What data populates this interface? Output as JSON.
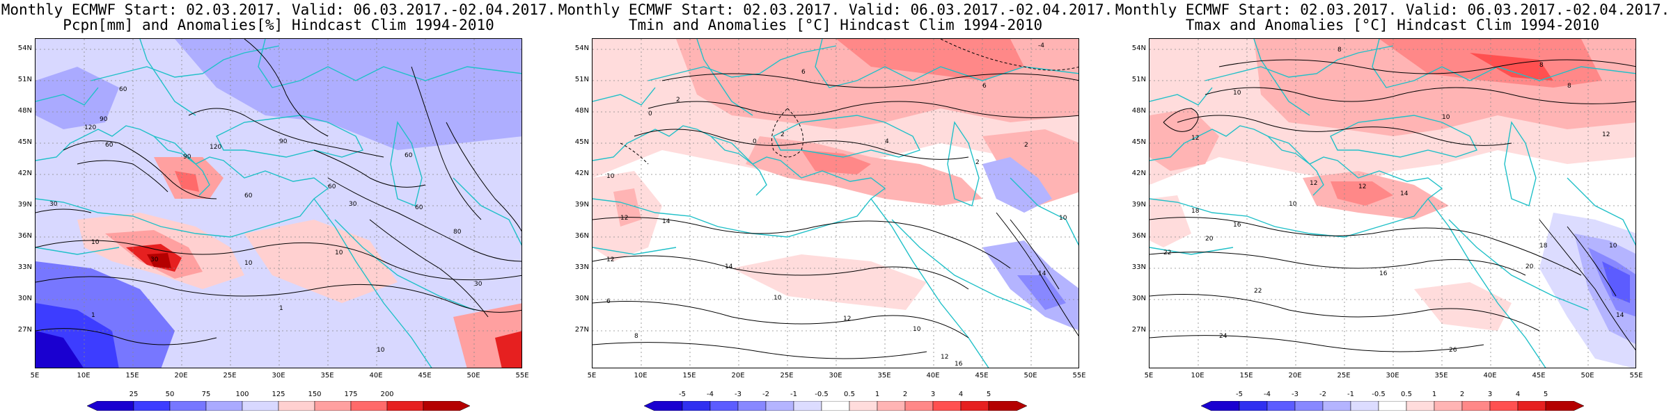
{
  "panels": [
    {
      "title_line1": "Monthly ECMWF Start: 02.03.2017. Valid: 06.03.2017.-02.04.2017.",
      "title_line2": "Pcpn[mm] and Anomalies[%] Hindcast Clim 1994-2010",
      "colorbar_ticks": [
        "25",
        "50",
        "75",
        "100",
        "125",
        "150",
        "175",
        "200"
      ],
      "colorbar_colors": [
        "#1a00d0",
        "#3d3dff",
        "#7777ff",
        "#aaaaff",
        "#d8d8ff",
        "#ffd0d0",
        "#ffa0a0",
        "#ff6a6a",
        "#e62020",
        "#b40000"
      ],
      "contour_labels": [
        "60",
        "90",
        "120",
        "60",
        "90",
        "60",
        "60",
        "90",
        "120",
        "60",
        "30",
        "30",
        "10",
        "30",
        "10",
        "10",
        "1",
        "1",
        "10",
        "60",
        "30",
        "80"
      ]
    },
    {
      "title_line1": "Monthly ECMWF Start: 02.03.2017. Valid: 06.03.2017.-02.04.2017.",
      "title_line2": "Tmin and Anomalies [°C] Hindcast Clim 1994-2010",
      "colorbar_ticks": [
        "-5",
        "-4",
        "-3",
        "-2",
        "-1",
        "-0.5",
        "0.5",
        "1",
        "2",
        "3",
        "4",
        "5"
      ],
      "colorbar_colors": [
        "#1a00d0",
        "#3030f0",
        "#5c5cff",
        "#8888ff",
        "#b4b4ff",
        "#dcdcff",
        "#ffffff",
        "#ffdcdc",
        "#ffb4b4",
        "#ff8888",
        "#ff5050",
        "#e62020",
        "#b40000"
      ],
      "contour_labels": [
        "-4",
        "6",
        "6",
        "0",
        "2",
        "2",
        "4",
        "2",
        "0",
        "2",
        "10",
        "12",
        "14",
        "12",
        "14",
        "10",
        "12",
        "6",
        "8",
        "10",
        "14",
        "12",
        "16",
        "10"
      ]
    },
    {
      "title_line1": "Monthly ECMWF Start: 02.03.2017. Valid: 06.03.2017.-02.04.2017.",
      "title_line2": "Tmax and Anomalies [°C] Hindcast Clim 1994-2010",
      "colorbar_ticks": [
        "-5",
        "-4",
        "-3",
        "-2",
        "-1",
        "-0.5",
        "0.5",
        "1",
        "2",
        "3",
        "4",
        "5"
      ],
      "colorbar_colors": [
        "#1a00d0",
        "#3030f0",
        "#5c5cff",
        "#8888ff",
        "#b4b4ff",
        "#dcdcff",
        "#ffffff",
        "#ffdcdc",
        "#ffb4b4",
        "#ff8888",
        "#ff5050",
        "#e62020",
        "#b40000"
      ],
      "contour_labels": [
        "8",
        "8",
        "8",
        "10",
        "12",
        "10",
        "12",
        "14",
        "12",
        "10",
        "16",
        "18",
        "20",
        "22",
        "22",
        "24",
        "26",
        "20",
        "16",
        "18",
        "10",
        "14",
        "12"
      ]
    }
  ],
  "axes": {
    "y_ticks": [
      "54N",
      "51N",
      "48N",
      "45N",
      "42N",
      "39N",
      "36N",
      "33N",
      "30N",
      "27N"
    ],
    "x_ticks": [
      "5E",
      "10E",
      "15E",
      "20E",
      "25E",
      "30E",
      "35E",
      "40E",
      "45E",
      "50E",
      "55E"
    ]
  },
  "colors": {
    "coastline": "#20c0c8",
    "contour": "#000000",
    "grid": "#888888"
  }
}
